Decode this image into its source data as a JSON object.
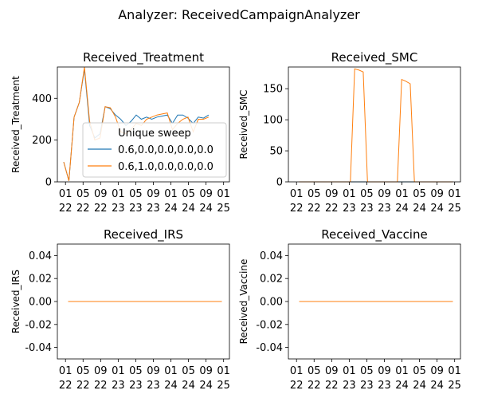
{
  "figure": {
    "suptitle": "Analyzer: ReceivedCampaignAnalyzer"
  },
  "x_tick_labels": [
    [
      "01",
      "22"
    ],
    [
      "05",
      "22"
    ],
    [
      "09",
      "22"
    ],
    [
      "01",
      "23"
    ],
    [
      "05",
      "23"
    ],
    [
      "09",
      "23"
    ],
    [
      "01",
      "24"
    ],
    [
      "05",
      "24"
    ],
    [
      "09",
      "24"
    ],
    [
      "01",
      "25"
    ]
  ],
  "colors": {
    "series_0": "#1f77b4",
    "series_1": "#ff7f0e",
    "axis": "#000000",
    "background": "#ffffff"
  },
  "chart_data": [
    {
      "type": "line",
      "title": "Received_Treatment",
      "xlabel": "",
      "ylabel": "Received_Treatment",
      "xlim": [
        0,
        37
      ],
      "ylim": [
        0,
        550
      ],
      "y_ticks": [
        0,
        200,
        400
      ],
      "legend": {
        "title": "Unique sweep",
        "placement": "lower-right"
      },
      "series": [
        {
          "name": "0.6,0.0,0.0,0.0,0.0",
          "color": "#1f77b4",
          "values": [
            95,
            5,
            310,
            380,
            540,
            270,
            210,
            230,
            360,
            350,
            320,
            300,
            270,
            290,
            320,
            300,
            310,
            300,
            310,
            315,
            320,
            280,
            320,
            320,
            305,
            280,
            310,
            305,
            320
          ]
        },
        {
          "name": "0.6,1.0,0.0,0.0,0.0",
          "color": "#ff7f0e",
          "values": [
            95,
            5,
            310,
            380,
            550,
            290,
            200,
            210,
            360,
            355,
            310,
            240,
            230,
            250,
            280,
            270,
            300,
            310,
            320,
            325,
            330,
            250,
            280,
            300,
            310,
            240,
            300,
            300,
            310
          ]
        }
      ]
    },
    {
      "type": "line",
      "title": "Received_SMC",
      "xlabel": "",
      "ylabel": "Received_SMC",
      "xlim": [
        0,
        37
      ],
      "ylim": [
        0,
        185
      ],
      "y_ticks": [
        0,
        50,
        100,
        150
      ],
      "series": [
        {
          "name": "",
          "color": "#1f77b4",
          "values": [
            0,
            0,
            0,
            0,
            0,
            0,
            0,
            0,
            0,
            0,
            0,
            0,
            0,
            0,
            0,
            0,
            0,
            0,
            0,
            0,
            0,
            0,
            0,
            0,
            0,
            0,
            0,
            0,
            0,
            0,
            0,
            0,
            0,
            0,
            0,
            0,
            0
          ]
        },
        {
          "name": "",
          "color": "#ff7f0e",
          "values": [
            0,
            0,
            0,
            0,
            0,
            0,
            0,
            0,
            0,
            0,
            0,
            0,
            0,
            182,
            180,
            177,
            0,
            0,
            0,
            0,
            0,
            0,
            0,
            0,
            165,
            162,
            158,
            0,
            0,
            0,
            0,
            0,
            0,
            0,
            0,
            0,
            0
          ]
        }
      ]
    },
    {
      "type": "line",
      "title": "Received_IRS",
      "xlabel": "",
      "ylabel": "Received_IRS",
      "xlim": [
        0,
        37
      ],
      "ylim": [
        -0.05,
        0.05
      ],
      "y_ticks": [
        "-0.04",
        "-0.02",
        "0.00",
        "0.02",
        "0.04"
      ],
      "series": [
        {
          "name": "",
          "color": "#1f77b4",
          "values": [
            0,
            0
          ]
        },
        {
          "name": "",
          "color": "#ff7f0e",
          "values": [
            0,
            0
          ]
        }
      ]
    },
    {
      "type": "line",
      "title": "Received_Vaccine",
      "xlabel": "",
      "ylabel": "Received_Vaccine",
      "xlim": [
        0,
        37
      ],
      "ylim": [
        -0.05,
        0.05
      ],
      "y_ticks": [
        "-0.04",
        "-0.02",
        "0.00",
        "0.02",
        "0.04"
      ],
      "series": [
        {
          "name": "",
          "color": "#1f77b4",
          "values": [
            0,
            0
          ]
        },
        {
          "name": "",
          "color": "#ff7f0e",
          "values": [
            0,
            0
          ]
        }
      ]
    }
  ]
}
